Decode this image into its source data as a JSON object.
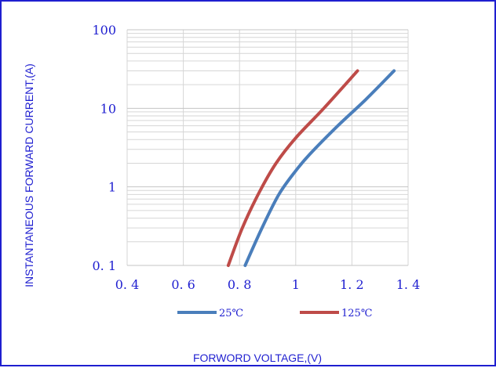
{
  "chart_data": {
    "type": "line",
    "xlabel": "FORWORD VOLTAGE,(V)",
    "ylabel": "INSTANTANEOUS FORWARD CURRENT,(A)",
    "x_ticks": [
      "0.4",
      "0.6",
      "0.8",
      "1",
      "1.2",
      "1.4"
    ],
    "y_ticks": [
      "0.1",
      "1",
      "10",
      "100"
    ],
    "xlim": [
      0.4,
      1.4
    ],
    "ylim": [
      0.1,
      100
    ],
    "y_scale": "log",
    "grid": true,
    "legend_position": "bottom",
    "series": [
      {
        "name": "25℃",
        "color": "#4a7ebb",
        "points": [
          [
            0.82,
            0.1
          ],
          [
            0.88,
            0.3
          ],
          [
            0.94,
            0.8
          ],
          [
            1.0,
            1.6
          ],
          [
            1.05,
            2.6
          ],
          [
            1.15,
            6.0
          ],
          [
            1.25,
            13.0
          ],
          [
            1.35,
            30.0
          ]
        ]
      },
      {
        "name": "125℃",
        "color": "#be4b48",
        "points": [
          [
            0.76,
            0.1
          ],
          [
            0.81,
            0.3
          ],
          [
            0.87,
            0.85
          ],
          [
            0.93,
            2.0
          ],
          [
            1.0,
            4.2
          ],
          [
            1.1,
            10.0
          ],
          [
            1.22,
            30.0
          ]
        ]
      }
    ]
  }
}
